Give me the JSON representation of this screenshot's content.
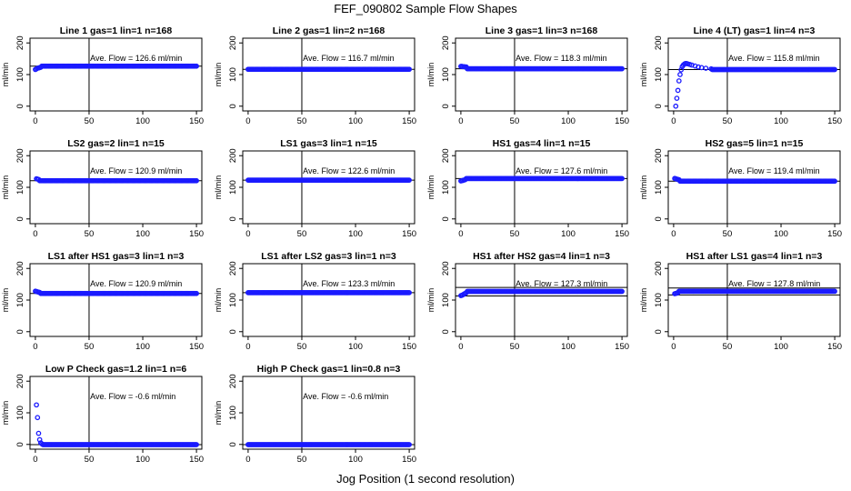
{
  "figure": {
    "title": "FEF_090802  Sample Flow Shapes",
    "x_caption": "Jog Position (1 second resolution)",
    "point_color": "#1a1aff"
  },
  "chart_data": [
    {
      "type": "scatter",
      "title": "Line 1 gas=1 lin=1 n=168",
      "ylabel": "ml/min",
      "ylim": [
        -15,
        215
      ],
      "xlim": [
        -5,
        155
      ],
      "xticks": [
        0,
        50,
        100,
        150
      ],
      "yticks": [
        0,
        100,
        200
      ],
      "vline": 50,
      "annotation": "Ave. Flow =  126.6  ml/min",
      "hlines": [
        126.6
      ],
      "series": {
        "base": 126.6,
        "start": [
          [
            0,
            116
          ],
          [
            1,
            118
          ],
          [
            2,
            120
          ],
          [
            3,
            121
          ],
          [
            4,
            122
          ],
          [
            5,
            123
          ]
        ]
      }
    },
    {
      "type": "scatter",
      "title": "Line 2 gas=1 lin=2 n=168",
      "ylabel": "ml/min",
      "ylim": [
        -15,
        215
      ],
      "xlim": [
        -5,
        155
      ],
      "xticks": [
        0,
        50,
        100,
        150
      ],
      "yticks": [
        0,
        100,
        200
      ],
      "vline": 50,
      "annotation": "Ave. Flow =  116.7  ml/min",
      "hlines": [
        116.7
      ],
      "series": {
        "base": 116.7,
        "start": []
      }
    },
    {
      "type": "scatter",
      "title": "Line 3 gas=1 lin=3 n=168",
      "ylabel": "ml/min",
      "ylim": [
        -15,
        215
      ],
      "xlim": [
        -5,
        155
      ],
      "xticks": [
        0,
        50,
        100,
        150
      ],
      "yticks": [
        0,
        100,
        200
      ],
      "vline": 50,
      "annotation": "Ave. Flow =  118.3  ml/min",
      "hlines": [
        118.3
      ],
      "series": {
        "base": 118.3,
        "start": [
          [
            0,
            126
          ],
          [
            1,
            126
          ],
          [
            2,
            125
          ],
          [
            3,
            125
          ],
          [
            4,
            124
          ],
          [
            5,
            124
          ]
        ]
      }
    },
    {
      "type": "scatter",
      "title": "Line 4 (LT) gas=1 lin=4 n=3",
      "ylabel": "ml/min",
      "ylim": [
        -15,
        215
      ],
      "xlim": [
        -5,
        155
      ],
      "xticks": [
        0,
        50,
        100,
        150
      ],
      "yticks": [
        0,
        100,
        200
      ],
      "vline": 50,
      "annotation": "Ave. Flow =  115.8  ml/min",
      "hlines": [
        115.8
      ],
      "series": {
        "base": 115.8,
        "start": [
          [
            2,
            0
          ],
          [
            3,
            25
          ],
          [
            4,
            50
          ],
          [
            5,
            80
          ],
          [
            6,
            100
          ],
          [
            7,
            115
          ],
          [
            8,
            125
          ],
          [
            9,
            130
          ],
          [
            10,
            133
          ],
          [
            11,
            135
          ],
          [
            12,
            135
          ],
          [
            13,
            134
          ],
          [
            15,
            132
          ],
          [
            17,
            130
          ],
          [
            20,
            127
          ],
          [
            23,
            124
          ],
          [
            26,
            122
          ],
          [
            30,
            120
          ],
          [
            35,
            118
          ]
        ]
      }
    },
    {
      "type": "scatter",
      "title": "LS2 gas=2 lin=1 n=15",
      "ylabel": "ml/min",
      "ylim": [
        -15,
        215
      ],
      "xlim": [
        -5,
        155
      ],
      "xticks": [
        0,
        50,
        100,
        150
      ],
      "yticks": [
        0,
        100,
        200
      ],
      "vline": 50,
      "annotation": "Ave. Flow =  120.9  ml/min",
      "hlines": [
        120.9
      ],
      "series": {
        "base": 120.9,
        "start": [
          [
            1,
            127
          ],
          [
            2,
            126
          ],
          [
            3,
            125
          ]
        ]
      }
    },
    {
      "type": "scatter",
      "title": "LS1 gas=3 lin=1 n=15",
      "ylabel": "ml/min",
      "ylim": [
        -15,
        215
      ],
      "xlim": [
        -5,
        155
      ],
      "xticks": [
        0,
        50,
        100,
        150
      ],
      "yticks": [
        0,
        100,
        200
      ],
      "vline": 50,
      "annotation": "Ave. Flow =  122.6  ml/min",
      "hlines": [
        122.6
      ],
      "series": {
        "base": 122.6,
        "start": []
      }
    },
    {
      "type": "scatter",
      "title": "HS1 gas=4 lin=1 n=15",
      "ylabel": "ml/min",
      "ylim": [
        -15,
        215
      ],
      "xlim": [
        -5,
        155
      ],
      "xticks": [
        0,
        50,
        100,
        150
      ],
      "yticks": [
        0,
        100,
        200
      ],
      "vline": 50,
      "annotation": "Ave. Flow =  127.6  ml/min",
      "hlines": [
        127.6
      ],
      "series": {
        "base": 127.6,
        "start": [
          [
            0,
            120
          ],
          [
            1,
            121
          ],
          [
            2,
            122
          ],
          [
            3,
            123
          ],
          [
            4,
            124
          ]
        ]
      }
    },
    {
      "type": "scatter",
      "title": "HS2 gas=5 lin=1 n=15",
      "ylabel": "ml/min",
      "ylim": [
        -15,
        215
      ],
      "xlim": [
        -5,
        155
      ],
      "xticks": [
        0,
        50,
        100,
        150
      ],
      "yticks": [
        0,
        100,
        200
      ],
      "vline": 50,
      "annotation": "Ave. Flow =  119.4  ml/min",
      "hlines": [
        119.4
      ],
      "series": {
        "base": 119.4,
        "start": [
          [
            1,
            128
          ],
          [
            2,
            127
          ],
          [
            3,
            126
          ],
          [
            4,
            125
          ],
          [
            5,
            124
          ]
        ]
      }
    },
    {
      "type": "scatter",
      "title": "LS1 after HS1 gas=3 lin=1 n=3",
      "ylabel": "ml/min",
      "ylim": [
        -15,
        215
      ],
      "xlim": [
        -5,
        155
      ],
      "xticks": [
        0,
        50,
        100,
        150
      ],
      "yticks": [
        0,
        100,
        200
      ],
      "vline": 50,
      "annotation": "Ave. Flow =  120.9  ml/min",
      "hlines": [
        120.9
      ],
      "series": {
        "base": 120.9,
        "start": [
          [
            0,
            128
          ],
          [
            1,
            127
          ],
          [
            2,
            126
          ],
          [
            3,
            125
          ],
          [
            4,
            124
          ]
        ]
      }
    },
    {
      "type": "scatter",
      "title": "LS1 after LS2 gas=3 lin=1 n=3",
      "ylabel": "ml/min",
      "ylim": [
        -15,
        215
      ],
      "xlim": [
        -5,
        155
      ],
      "xticks": [
        0,
        50,
        100,
        150
      ],
      "yticks": [
        0,
        100,
        200
      ],
      "vline": 50,
      "annotation": "Ave. Flow =  123.3  ml/min",
      "hlines": [
        123.3
      ],
      "series": {
        "base": 123.3,
        "start": []
      }
    },
    {
      "type": "scatter",
      "title": "HS1 after HS2 gas=4 lin=1 n=3",
      "ylabel": "ml/min",
      "ylim": [
        -15,
        215
      ],
      "xlim": [
        -5,
        155
      ],
      "xticks": [
        0,
        50,
        100,
        150
      ],
      "yticks": [
        0,
        100,
        200
      ],
      "vline": 50,
      "annotation": "Ave. Flow =  127.3  ml/min",
      "hlines": [
        113,
        140
      ],
      "series": {
        "base": 127.3,
        "start": [
          [
            0,
            114
          ],
          [
            1,
            115
          ],
          [
            2,
            117
          ],
          [
            3,
            119
          ],
          [
            4,
            121
          ],
          [
            5,
            123
          ]
        ]
      }
    },
    {
      "type": "scatter",
      "title": "HS1 after LS1 gas=4 lin=1 n=3",
      "ylabel": "ml/min",
      "ylim": [
        -15,
        215
      ],
      "xlim": [
        -5,
        155
      ],
      "xticks": [
        0,
        50,
        100,
        150
      ],
      "yticks": [
        0,
        100,
        200
      ],
      "vline": 50,
      "annotation": "Ave. Flow =  127.8  ml/min",
      "hlines": [
        116,
        138
      ],
      "series": {
        "base": 127.8,
        "start": [
          [
            1,
            120
          ],
          [
            2,
            121
          ],
          [
            3,
            122
          ],
          [
            4,
            123
          ]
        ]
      }
    },
    {
      "type": "scatter",
      "title": "Low P Check gas=1.2 lin=1 n=6",
      "ylabel": "ml/min",
      "ylim": [
        -15,
        215
      ],
      "xlim": [
        -5,
        155
      ],
      "xticks": [
        0,
        50,
        100,
        150
      ],
      "yticks": [
        0,
        100,
        200
      ],
      "vline": 50,
      "annotation": "Ave. Flow =  -0.6  ml/min",
      "hlines": [
        -0.6
      ],
      "series": {
        "base": -0.6,
        "start": [
          [
            1,
            125
          ],
          [
            2,
            85
          ],
          [
            3,
            35
          ],
          [
            4,
            15
          ],
          [
            5,
            5
          ],
          [
            6,
            2
          ]
        ]
      }
    },
    {
      "type": "scatter",
      "title": "High P Check gas=1 lin=0.8 n=3",
      "ylabel": "ml/min",
      "ylim": [
        -15,
        215
      ],
      "xlim": [
        -5,
        155
      ],
      "xticks": [
        0,
        50,
        100,
        150
      ],
      "yticks": [
        0,
        100,
        200
      ],
      "vline": 50,
      "annotation": "Ave. Flow =  -0.6  ml/min",
      "hlines": [
        -0.6
      ],
      "series": {
        "base": -0.6,
        "start": []
      }
    }
  ]
}
